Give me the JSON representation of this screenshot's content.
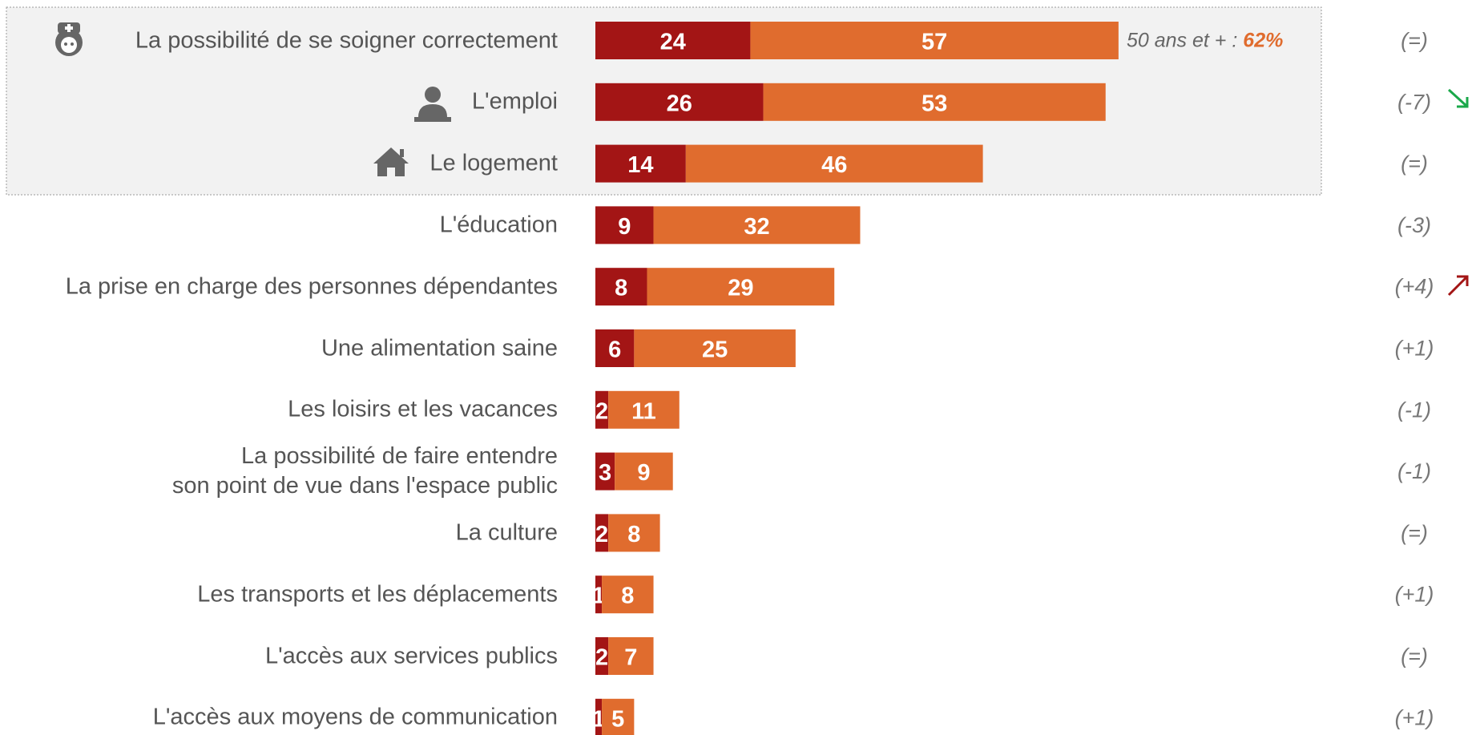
{
  "chart_data": {
    "type": "bar",
    "orientation": "horizontal",
    "stacked": true,
    "categories": [
      "La possibilité de se soigner correctement",
      "L'emploi",
      "Le logement",
      "L'éducation",
      "La prise en charge des personnes dépendantes",
      "Une alimentation saine",
      "Les loisirs et les vacances",
      "La possibilité de faire entendre\nson point de vue dans l'espace public",
      "La culture",
      "Les transports et les déplacements",
      "L'accès aux services publics",
      "L'accès aux moyens de communication"
    ],
    "series": [
      {
        "color": "#a31515",
        "values": [
          24,
          26,
          14,
          9,
          8,
          6,
          2,
          3,
          2,
          1,
          2,
          1
        ]
      },
      {
        "color": "#e06c2e",
        "values": [
          57,
          53,
          46,
          32,
          29,
          25,
          11,
          9,
          8,
          8,
          7,
          5
        ]
      }
    ],
    "xlim": [
      0,
      100
    ],
    "changes": [
      "(=)",
      "(-7)",
      "(=)",
      "(-3)",
      "(+4)",
      "(+1)",
      "(-1)",
      "(-1)",
      "(=)",
      "(+1)",
      "(=)",
      "(+1)"
    ],
    "annotation": {
      "text": "50 ans et + :",
      "highlight": "62%"
    }
  }
}
